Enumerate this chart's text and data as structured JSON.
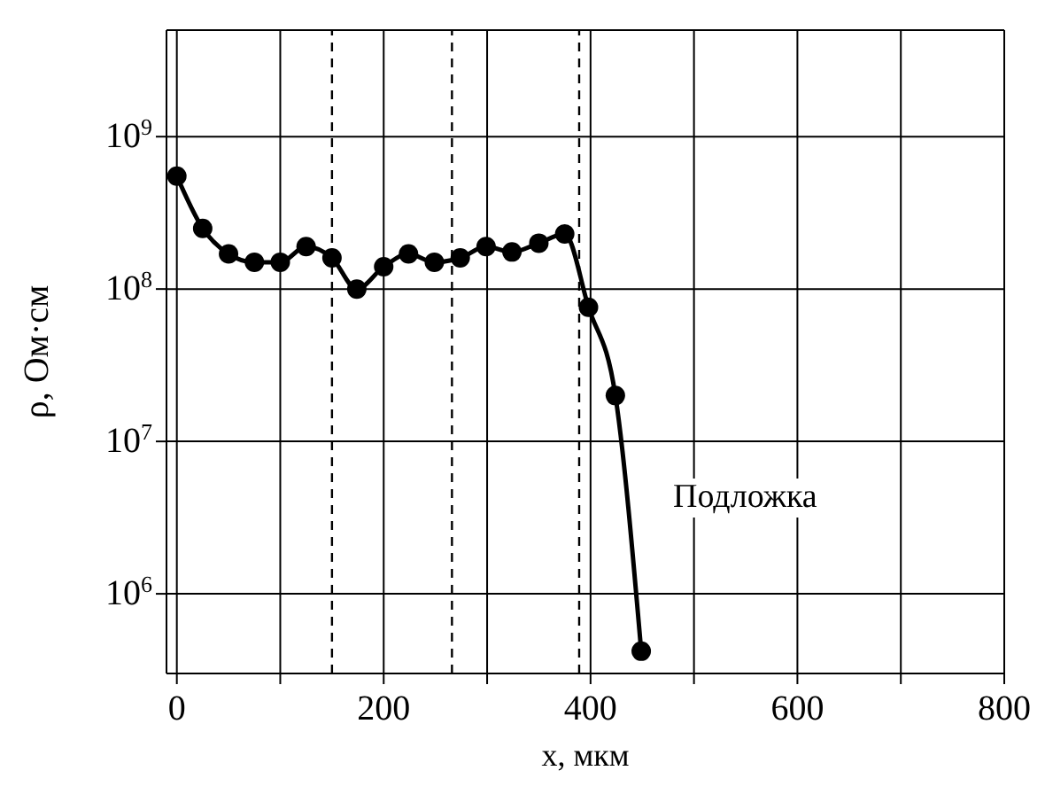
{
  "chart_data": {
    "type": "line",
    "xlabel": "x, мкм",
    "ylabel": "ρ, Ом·см",
    "x": [
      0,
      25,
      50,
      75,
      100,
      125,
      150,
      174,
      200,
      224,
      249,
      274,
      299,
      324,
      350,
      375,
      398,
      424,
      449
    ],
    "series": [
      {
        "color": "#000000",
        "values": [
          550000000.0,
          250000000.0,
          170000000.0,
          150000000.0,
          150000000.0,
          190000000.0,
          160000000.0,
          100000000.0,
          140000000.0,
          170000000.0,
          150000000.0,
          160000000.0,
          190000000.0,
          175000000.0,
          200000000.0,
          230000000.0,
          76000000.0,
          20000000.0,
          420000.0
        ]
      }
    ],
    "xlim": [
      -10,
      800
    ],
    "ylim": [
      300000.0,
      5000000000.0
    ],
    "xticks": [
      0,
      {
        "value": 100,
        "label": null
      },
      200,
      {
        "value": 300,
        "label": null
      },
      400,
      {
        "value": 500,
        "label": null
      },
      600,
      {
        "value": 700,
        "label": null
      },
      800
    ],
    "yticks": [
      {
        "value": 1000000.0,
        "label": "10$^{6}$"
      },
      {
        "value": 10000000.0,
        "label": "10$^{7}$"
      },
      {
        "value": 100000000.0,
        "label": "10$^{8}$"
      },
      {
        "value": 1000000000.0,
        "label": "10$^{9}$"
      }
    ],
    "log": "y",
    "grid": true,
    "marker": "circle",
    "line_style": "solid",
    "ref_lines": [
      {
        "axis": "x",
        "value": 150,
        "color": "#000000",
        "line_style": "dashed"
      },
      {
        "axis": "x",
        "value": 266,
        "color": "#000000",
        "line_style": "dashed"
      },
      {
        "axis": "x",
        "value": 389,
        "color": "#000000",
        "line_style": "dashed"
      }
    ],
    "annotations": [
      "Подложка"
    ]
  }
}
